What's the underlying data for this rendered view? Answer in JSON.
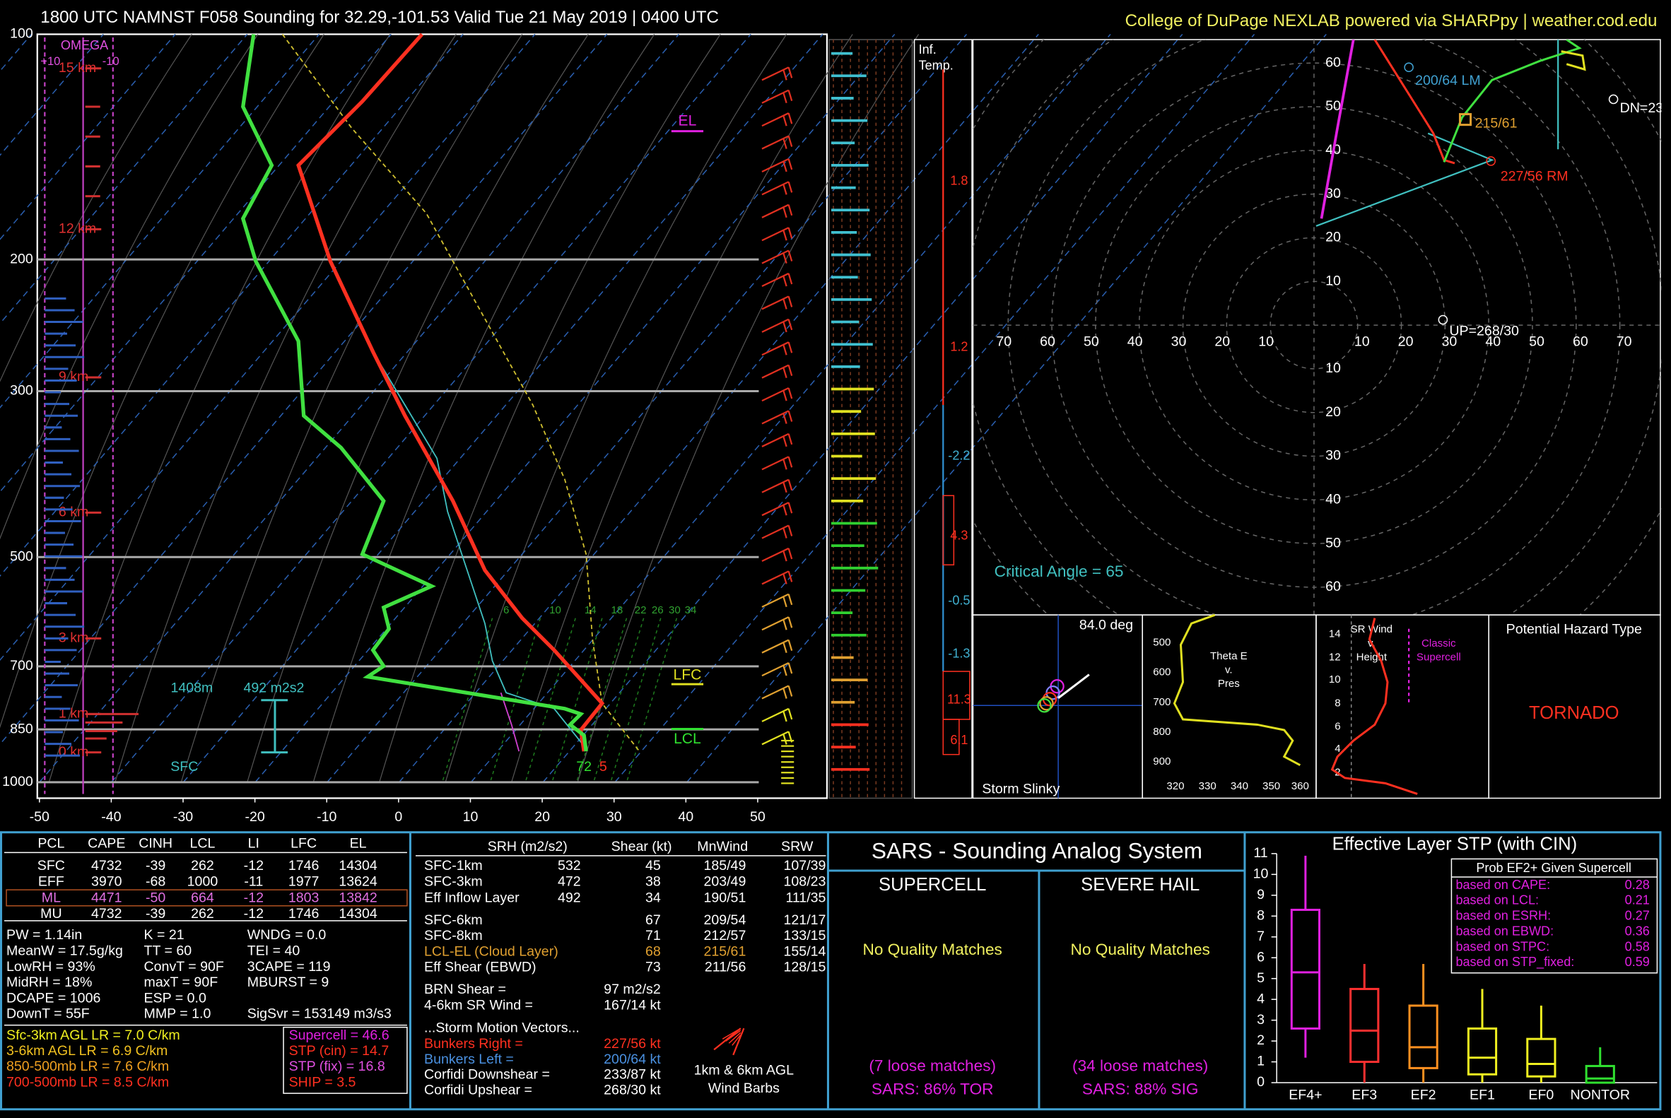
{
  "header": {
    "title": "1800 UTC NAMNST F058 Sounding for 32.29,-101.53 Valid  Tue 21 May 2019 | 0400 UTC",
    "credit": "College of DuPage NEXLAB powered via SHARPpy | weather.cod.edu"
  },
  "skewt": {
    "pressure_ticks": [
      100,
      200,
      300,
      500,
      700,
      850,
      1000
    ],
    "plim": [
      100,
      1000
    ],
    "temp_ticks": [
      -50,
      -40,
      -30,
      -20,
      -10,
      0,
      10,
      20,
      30,
      40,
      50
    ],
    "tlim": [
      -50,
      50
    ],
    "height_labels": [
      "15 km",
      "12 km",
      "9 km",
      "6 km",
      "3 km",
      "1 km",
      "0 km"
    ],
    "omega": [
      "OMEGA",
      "+10",
      "-10"
    ],
    "el": "EL",
    "lfc": "LFC",
    "lcl": "LCL",
    "eff_layer": [
      "1408m",
      "492 m2s2",
      "SFC"
    ],
    "sfc_values": [
      "72",
      "5"
    ],
    "mixing_ratio": [
      6,
      10,
      14,
      18,
      22,
      26,
      30,
      34
    ]
  },
  "inferred_temp": {
    "title": [
      "Inf.",
      "Temp."
    ],
    "values": [
      "1.8",
      "1.2",
      "-2.2",
      "4.3",
      "-0.5",
      "-1.3",
      "11.3",
      "6.1"
    ]
  },
  "hodograph": {
    "ring_labels": [
      10,
      20,
      30,
      40,
      50,
      60,
      70
    ],
    "lm": "200/64 LM",
    "mean": "215/61",
    "rm": "227/56 RM",
    "dn": "DN=23",
    "up": "UP=268/30",
    "critical_angle": "Critical Angle = 65"
  },
  "slinky": {
    "angle": "84.0 deg",
    "title": "Storm Slinky"
  },
  "theta": {
    "title": [
      "Theta E",
      "v.",
      "Pres"
    ],
    "yticks": [
      500,
      600,
      700,
      800,
      900
    ],
    "xticks": [
      320,
      330,
      340,
      350,
      360
    ]
  },
  "srwind": {
    "title": [
      "SR Wind",
      "v.",
      "Height"
    ],
    "yticks": [
      14,
      12,
      10,
      8,
      6,
      4,
      2
    ],
    "type_label": [
      "Classic",
      "Supercell"
    ]
  },
  "hazard": {
    "title": "Potential Hazard Type",
    "value": "TORNADO"
  },
  "parcels": {
    "header": [
      "PCL",
      "CAPE",
      "CINH",
      "LCL",
      "LI",
      "LFC",
      "EL"
    ],
    "rows": [
      [
        "SFC",
        "4732",
        "-39",
        "262",
        "-12",
        "1746",
        "14304"
      ],
      [
        "EFF",
        "3970",
        "-68",
        "1000",
        "-11",
        "1977",
        "13624"
      ],
      [
        "ML",
        "4471",
        "-50",
        "664",
        "-12",
        "1803",
        "13842"
      ],
      [
        "MU",
        "4732",
        "-39",
        "262",
        "-12",
        "1746",
        "14304"
      ]
    ]
  },
  "indices": [
    [
      "PW = 1.14in",
      "K = 21",
      "WNDG = 0.0"
    ],
    [
      "MeanW = 17.5g/kg",
      "TT = 60",
      "TEI = 40"
    ],
    [
      "LowRH = 93%",
      "ConvT = 90F",
      "3CAPE = 119"
    ],
    [
      "MidRH = 18%",
      "maxT = 90F",
      "MBURST = 9"
    ],
    [
      "DCAPE = 1006",
      "ESP = 0.0"
    ],
    [
      "DownT = 55F",
      "MMP = 1.0",
      "SigSvr = 153149 m3/s3"
    ]
  ],
  "lapse_rates": [
    "Sfc-3km AGL LR = 7.0 C/km",
    "3-6km AGL LR = 6.9 C/km",
    "850-500mb LR = 7.6 C/km",
    "700-500mb LR = 8.5 C/km"
  ],
  "composites": [
    "Supercell = 46.6",
    "STP (cin) = 14.7",
    "STP (fix) = 16.8",
    "SHIP = 3.5"
  ],
  "kinematics": {
    "header": [
      "SRH (m2/s2)",
      "Shear (kt)",
      "MnWind",
      "SRW"
    ],
    "srh_rows": [
      [
        "SFC-1km",
        "532",
        "45",
        "185/49",
        "107/39"
      ],
      [
        "SFC-3km",
        "472",
        "38",
        "203/49",
        "108/23"
      ],
      [
        "Eff Inflow Layer",
        "492",
        "34",
        "190/51",
        "111/35"
      ]
    ],
    "shear_rows": [
      [
        "SFC-6km",
        "67",
        "209/54",
        "121/17"
      ],
      [
        "SFC-8km",
        "71",
        "212/57",
        "133/15"
      ],
      [
        "LCL-EL (Cloud Layer)",
        "68",
        "215/61",
        "155/14"
      ],
      [
        "Eff Shear (EBWD)",
        "73",
        "211/56",
        "128/15"
      ]
    ],
    "misc": [
      [
        "BRN Shear =",
        "97 m2/s2"
      ],
      [
        "4-6km SR Wind =",
        "167/14 kt"
      ]
    ],
    "motion_title": "...Storm Motion Vectors...",
    "motions": [
      [
        "Bunkers Right =",
        "227/56 kt"
      ],
      [
        "Bunkers Left =",
        "200/64 kt"
      ],
      [
        "Corfidi Downshear =",
        "233/87 kt"
      ],
      [
        "Corfidi Upshear =",
        "268/30 kt"
      ]
    ],
    "barbs_label": [
      "1km & 6km AGL",
      "Wind Barbs"
    ]
  },
  "sars": {
    "title": "SARS - Sounding Analog System",
    "supercell": {
      "title": "SUPERCELL",
      "quality": "No Quality Matches",
      "loose": "(7 loose matches)",
      "result": "SARS: 86% TOR"
    },
    "hail": {
      "title": "SEVERE HAIL",
      "quality": "No Quality Matches",
      "loose": "(34 loose matches)",
      "result": "SARS: 88% SIG"
    }
  },
  "chart_data": {
    "type": "box",
    "title": "Effective Layer STP (with CIN)",
    "categories": [
      "EF4+",
      "EF3",
      "EF2",
      "EF1",
      "EF0",
      "NONTOR"
    ],
    "colors": [
      "#e020e0",
      "#ff3030",
      "#ff9020",
      "#f0f020",
      "#f0f020",
      "#30e030"
    ],
    "low": [
      1.2,
      0,
      0,
      0,
      0,
      0
    ],
    "q1": [
      2.6,
      1.0,
      0.7,
      0.4,
      0.3,
      0
    ],
    "median": [
      5.3,
      2.5,
      1.7,
      1.2,
      0.9,
      0.2
    ],
    "q3": [
      8.3,
      4.5,
      3.7,
      2.6,
      2.1,
      0.8
    ],
    "high": [
      10.9,
      5.7,
      5.7,
      4.5,
      3.7,
      1.7
    ],
    "ylim": [
      0,
      11
    ],
    "yticks": [
      0,
      1,
      2,
      3,
      4,
      5,
      6,
      7,
      8,
      9,
      10,
      11
    ],
    "prob_title": "Prob EF2+ Given Supercell",
    "prob": [
      [
        "based on CAPE:",
        "0.28"
      ],
      [
        "based on LCL:",
        "0.21"
      ],
      [
        "based on ESRH:",
        "0.27"
      ],
      [
        "based on EBWD:",
        "0.36"
      ],
      [
        "based on STPC:",
        "0.58"
      ],
      [
        "based on STP_fixed:",
        "0.59"
      ]
    ]
  }
}
